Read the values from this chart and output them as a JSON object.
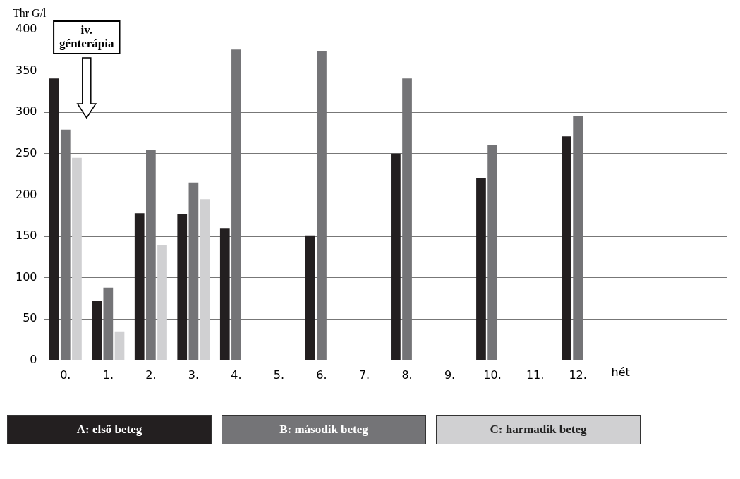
{
  "chart_data": {
    "type": "bar",
    "ylabel": "Thr G/l",
    "xlabel": "hét",
    "categories": [
      "0.",
      "1.",
      "2.",
      "3.",
      "4.",
      "5.",
      "6.",
      "7.",
      "8.",
      "9.",
      "10.",
      "11.",
      "12.",
      null,
      null,
      null
    ],
    "series": [
      {
        "name": "A: első beteg",
        "color": "#231f20",
        "values": [
          341,
          72,
          178,
          177,
          160,
          null,
          151,
          null,
          250,
          null,
          220,
          null,
          271,
          null,
          null,
          null
        ]
      },
      {
        "name": "B: második beteg",
        "color": "#747477",
        "values": [
          279,
          88,
          254,
          215,
          376,
          null,
          374,
          null,
          341,
          null,
          260,
          null,
          295,
          null,
          null,
          null
        ]
      },
      {
        "name": "C: harmadik beteg",
        "color": "#d0d0d2",
        "values": [
          245,
          35,
          139,
          195,
          null,
          null,
          null,
          null,
          null,
          null,
          null,
          null,
          null,
          null,
          null,
          null
        ]
      }
    ],
    "ylim": [
      0,
      400
    ],
    "yticks": [
      0,
      50,
      100,
      150,
      200,
      250,
      300,
      350,
      400
    ],
    "grid": "y",
    "legend": "bottom",
    "annotations": [
      "iv.\ngénterápia"
    ]
  }
}
